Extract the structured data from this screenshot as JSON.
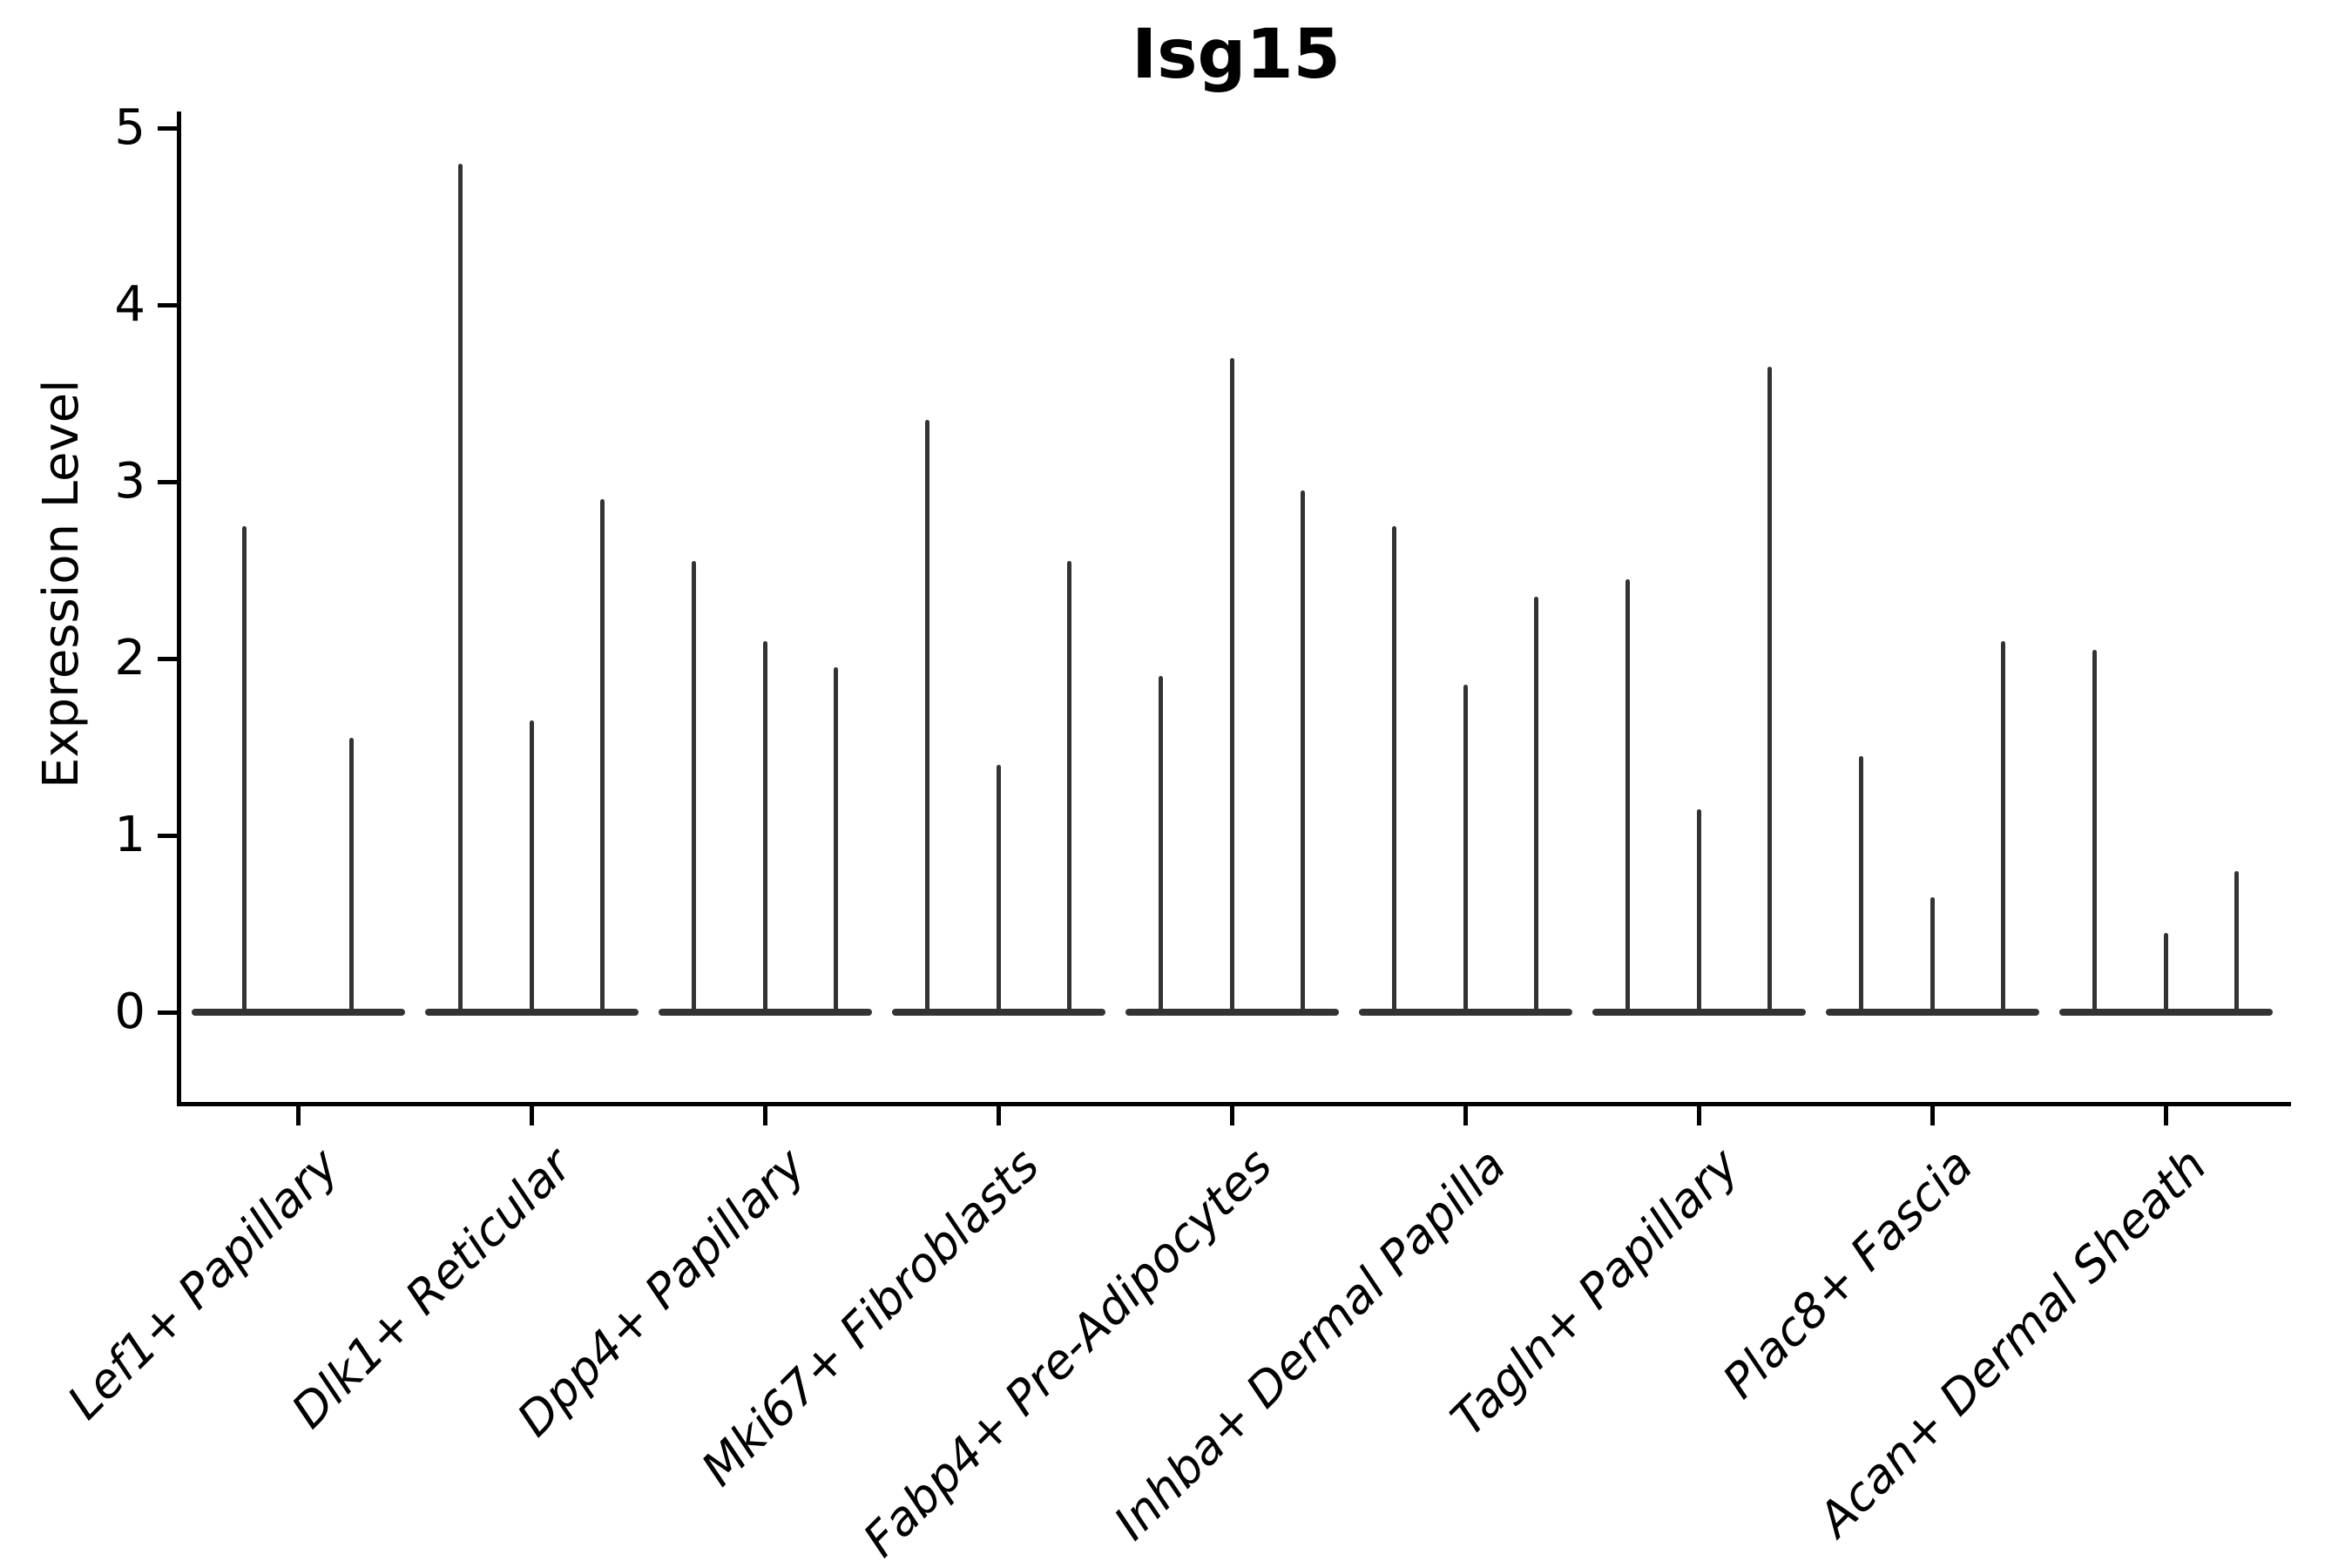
{
  "title": "Isg15",
  "y_axis": {
    "label": "Expression Level",
    "ticks": [
      "0",
      "1",
      "2",
      "3",
      "4",
      "5"
    ]
  },
  "chart_data": {
    "type": "violin",
    "title": "Isg15",
    "xlabel": "",
    "ylabel": "Expression Level",
    "ylim": [
      0,
      5
    ],
    "yticks": [
      0,
      1,
      2,
      3,
      4,
      5
    ],
    "grid": false,
    "legend": "none",
    "categories": [
      "Lef1+ Papillary",
      "Dlk1+ Reticular",
      "Dpp4+ Papillary",
      "Mki67+ Fibroblasts",
      "Fabp4+ Pre-Adipocytes",
      "Inhba+ Dermal Papilla",
      "Tagln+ Papillary",
      "Plac8+ Fascia",
      "Acan+ Dermal Sheath"
    ],
    "violins": [
      {
        "category": "Lef1+ Papillary",
        "spike_maxima": [
          2.75,
          1.55
        ]
      },
      {
        "category": "Dlk1+ Reticular",
        "spike_maxima": [
          4.8,
          1.65,
          2.9
        ]
      },
      {
        "category": "Dpp4+ Papillary",
        "spike_maxima": [
          2.55,
          2.1,
          1.95
        ]
      },
      {
        "category": "Mki67+ Fibroblasts",
        "spike_maxima": [
          3.35,
          1.4,
          2.55
        ]
      },
      {
        "category": "Fabp4+ Pre-Adipocytes",
        "spike_maxima": [
          1.9,
          3.7,
          2.95
        ]
      },
      {
        "category": "Inhba+ Dermal Papilla",
        "spike_maxima": [
          2.75,
          1.85,
          2.35
        ]
      },
      {
        "category": "Tagln+ Papillary",
        "spike_maxima": [
          2.45,
          1.15,
          3.65
        ]
      },
      {
        "category": "Plac8+ Fascia",
        "spike_maxima": [
          1.45,
          0.65,
          2.1
        ]
      },
      {
        "category": "Acan+ Dermal Sheath",
        "spike_maxima": [
          2.05,
          0.45,
          0.8
        ]
      }
    ],
    "description": "Violin plot of Isg15 expression level per fibroblast cluster; each category contains 2-3 extremely narrow violins with wide flat bases at 0 and thin spikes reaching the listed maxima."
  },
  "style": {
    "violin_color": "#333333",
    "axis_color": "#000000",
    "text_color": "#000000",
    "background": "#ffffff"
  }
}
